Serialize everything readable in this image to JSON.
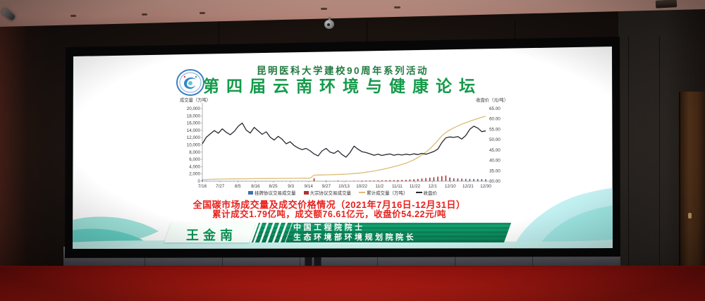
{
  "slide": {
    "header": {
      "event_line": "昆明医科大学建校90周年系列活动",
      "title": "第四届云南环境与健康论坛"
    },
    "summary": {
      "line1": "全国碳市场成交量及成交价格情况（2021年7月16日-12月31日）",
      "line2": "累计成交1.79亿吨，成交额76.61亿元，收盘价54.22元/吨"
    },
    "speaker": {
      "name": "王金南",
      "title_line1": "中国工程院院士",
      "title_line2": "生态环境部环境规划院院长"
    }
  },
  "icons": {
    "logo": "forum-logo",
    "camera": "dome-camera"
  },
  "colors": {
    "title_green": "#149a4a",
    "accent_red": "#e8211c",
    "banner_green": "#0d9163",
    "carpet_red": "#c41d14",
    "wave_teal": "#8fe0d6",
    "price_line": "#272730",
    "cumulative_line": "#dcbd74",
    "bar_blue": "#3a6fb0",
    "bar_red": "#b03030"
  },
  "chart_data": {
    "type": "line",
    "title": "全国碳市场成交量及成交价格情况（2021年7月16日-12月31日）",
    "left_axis": {
      "label": "成交量（万吨）",
      "range": [
        0,
        20000
      ],
      "ticks": [
        "0",
        "2,000",
        "4,000",
        "6,000",
        "8,000",
        "10,000",
        "12,000",
        "14,000",
        "16,000",
        "18,000",
        "20,000"
      ]
    },
    "right_axis": {
      "label": "收盘价（元/吨）",
      "range": [
        30,
        65
      ],
      "ticks": [
        "30.00",
        "35.00",
        "40.00",
        "45.00",
        "50.00",
        "55.00",
        "60.00",
        "65.00"
      ]
    },
    "x_ticks": [
      "7/16",
      "7/27",
      "8/5",
      "8/16",
      "8/25",
      "9/3",
      "9/14",
      "9/27",
      "10/13",
      "10/22",
      "11/2",
      "11/11",
      "11/22",
      "12/1",
      "12/10",
      "12/21",
      "12/30"
    ],
    "grid": false,
    "legend_position": "bottom",
    "series": [
      {
        "name": "挂牌协议交易成交量",
        "kind": "bar",
        "axis": "left",
        "color": "#3a6fb0",
        "values": [
          410,
          120,
          80,
          60,
          50,
          40,
          35,
          30,
          28,
          26,
          25,
          24,
          22,
          20,
          20,
          18,
          18,
          16,
          16,
          15,
          15,
          14,
          14,
          13,
          13,
          12,
          12,
          12,
          11,
          11,
          11,
          10,
          10,
          10,
          10,
          10,
          10,
          10,
          10,
          10,
          12,
          12,
          13,
          14,
          15,
          16,
          18,
          20,
          22,
          25,
          28,
          32,
          36,
          40,
          45,
          52,
          60,
          70,
          82,
          95,
          110,
          130,
          150,
          170,
          190,
          210,
          230,
          250,
          270,
          290,
          310,
          330
        ]
      },
      {
        "name": "大宗协议交易成交量",
        "kind": "bar",
        "axis": "left",
        "color": "#b03030",
        "values": [
          0,
          0,
          0,
          0,
          0,
          0,
          0,
          0,
          0,
          0,
          0,
          0,
          0,
          0,
          0,
          0,
          0,
          0,
          0,
          0,
          0,
          0,
          0,
          0,
          0,
          0,
          0,
          0,
          780,
          0,
          0,
          120,
          0,
          0,
          150,
          0,
          80,
          0,
          110,
          90,
          130,
          150,
          160,
          170,
          200,
          230,
          250,
          280,
          260,
          300,
          320,
          330,
          430,
          490,
          580,
          690,
          780,
          890,
          990,
          1150,
          1280,
          1420,
          850,
          620,
          560,
          480,
          420,
          380,
          340,
          300,
          260,
          220
        ]
      },
      {
        "name": "累计成交量（万吨）",
        "kind": "line",
        "axis": "left",
        "color": "#dcbd74",
        "values": [
          410,
          460,
          500,
          530,
          555,
          575,
          595,
          612,
          628,
          642,
          655,
          668,
          680,
          692,
          703,
          714,
          724,
          734,
          744,
          754,
          764,
          774,
          784,
          794,
          804,
          814,
          824,
          834,
          1650,
          1680,
          1710,
          1740,
          1770,
          1800,
          1840,
          1890,
          1950,
          2020,
          2100,
          2200,
          2320,
          2460,
          2620,
          2800,
          3000,
          3220,
          3460,
          3720,
          4000,
          4300,
          4620,
          4960,
          5400,
          5900,
          6500,
          7200,
          8000,
          8900,
          10000,
          11200,
          12500,
          13400,
          14100,
          14700,
          15200,
          15700,
          16100,
          16500,
          16900,
          17250,
          17600,
          17900
        ]
      },
      {
        "name": "收盘价",
        "kind": "line",
        "axis": "right",
        "color": "#272730",
        "values": [
          48.0,
          51.2,
          52.8,
          54.4,
          53.1,
          55.2,
          53.5,
          52.4,
          54.0,
          56.5,
          58.0,
          54.6,
          53.2,
          55.9,
          54.2,
          52.6,
          53.8,
          51.2,
          49.8,
          51.6,
          50.2,
          48.0,
          49.0,
          47.2,
          46.0,
          45.2,
          45.8,
          44.6,
          43.1,
          42.2,
          44.6,
          45.8,
          44.0,
          43.4,
          44.7,
          42.8,
          41.6,
          43.8,
          46.9,
          45.4,
          44.2,
          43.8,
          43.2,
          42.5,
          43.0,
          42.4,
          42.8,
          43.1,
          42.5,
          42.9,
          42.6,
          43.0,
          42.7,
          43.2,
          42.8,
          43.4,
          43.0,
          43.6,
          44.3,
          45.5,
          48.6,
          50.9,
          51.3,
          51.1,
          51.5,
          50.3,
          52.0,
          55.0,
          56.5,
          55.6,
          53.9,
          54.22
        ]
      }
    ],
    "legend": [
      {
        "marker": "square",
        "color": "#3a6fb0",
        "label": "挂牌协议交易成交量"
      },
      {
        "marker": "square",
        "color": "#b03030",
        "label": "大宗协议交易成交量"
      },
      {
        "marker": "line",
        "color": "#dcbd74",
        "label": "累计成交量（万吨）"
      },
      {
        "marker": "line",
        "color": "#272730",
        "label": "收盘价"
      }
    ]
  }
}
